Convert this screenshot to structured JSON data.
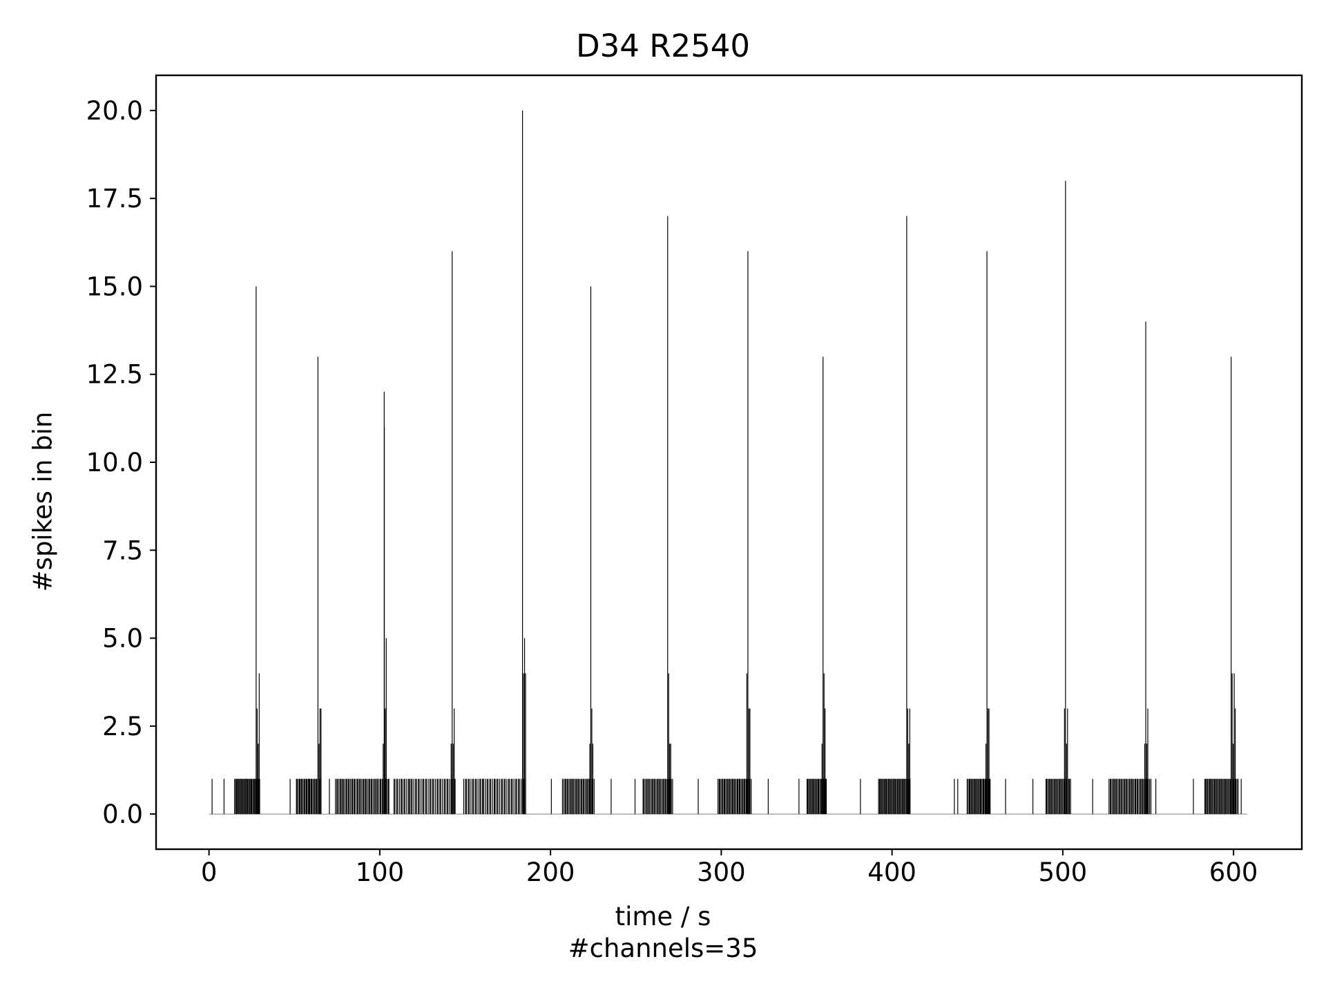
{
  "chart_data": {
    "type": "bar",
    "title": "D34 R2540",
    "xlabel": "time / s",
    "xlabel_sub": "#channels=35",
    "ylabel": "#spikes in bin",
    "xlim": [
      -31,
      640
    ],
    "ylim": [
      -1,
      21
    ],
    "xticks": [
      0,
      100,
      200,
      300,
      400,
      500,
      600
    ],
    "yticks": [
      "0.0",
      "2.5",
      "5.0",
      "7.5",
      "10.0",
      "12.5",
      "15.0",
      "17.5",
      "20.0"
    ],
    "ytick_values": [
      0,
      2.5,
      5,
      7.5,
      10,
      12.5,
      15,
      17.5,
      20
    ],
    "grid": false,
    "bar_color": "#000000",
    "baseline_end": 608,
    "burst_peaks": [
      {
        "x": 27.6,
        "value": 15
      },
      {
        "x": 63.8,
        "value": 13
      },
      {
        "x": 102.6,
        "value": 12
      },
      {
        "x": 142.4,
        "value": 16
      },
      {
        "x": 183.6,
        "value": 20
      },
      {
        "x": 223.6,
        "value": 15
      },
      {
        "x": 268.6,
        "value": 17
      },
      {
        "x": 315.6,
        "value": 16
      },
      {
        "x": 359.6,
        "value": 13
      },
      {
        "x": 408.6,
        "value": 17
      },
      {
        "x": 455.6,
        "value": 16
      },
      {
        "x": 501.6,
        "value": 18
      },
      {
        "x": 548.6,
        "value": 14
      },
      {
        "x": 598.6,
        "value": 13
      }
    ],
    "burst_secondary": [
      {
        "x": 28.2,
        "value": 3
      },
      {
        "x": 28.8,
        "value": 2
      },
      {
        "x": 29.4,
        "value": 4
      },
      {
        "x": 64.4,
        "value": 2
      },
      {
        "x": 65.0,
        "value": 3
      },
      {
        "x": 65.6,
        "value": 3
      },
      {
        "x": 102.7,
        "value": 11
      },
      {
        "x": 103.2,
        "value": 3
      },
      {
        "x": 103.8,
        "value": 5
      },
      {
        "x": 102.0,
        "value": 2
      },
      {
        "x": 143.0,
        "value": 2
      },
      {
        "x": 143.6,
        "value": 3
      },
      {
        "x": 141.8,
        "value": 2
      },
      {
        "x": 184.2,
        "value": 4
      },
      {
        "x": 184.8,
        "value": 5
      },
      {
        "x": 185.4,
        "value": 4
      },
      {
        "x": 224.2,
        "value": 3
      },
      {
        "x": 224.8,
        "value": 2
      },
      {
        "x": 223.0,
        "value": 2
      },
      {
        "x": 269.2,
        "value": 4
      },
      {
        "x": 269.8,
        "value": 2
      },
      {
        "x": 270.4,
        "value": 2
      },
      {
        "x": 316.2,
        "value": 3
      },
      {
        "x": 316.8,
        "value": 3
      },
      {
        "x": 315.0,
        "value": 4
      },
      {
        "x": 360.2,
        "value": 4
      },
      {
        "x": 360.8,
        "value": 3
      },
      {
        "x": 359.0,
        "value": 2
      },
      {
        "x": 409.2,
        "value": 3
      },
      {
        "x": 409.8,
        "value": 2
      },
      {
        "x": 410.4,
        "value": 3
      },
      {
        "x": 456.2,
        "value": 3
      },
      {
        "x": 456.8,
        "value": 3
      },
      {
        "x": 455.0,
        "value": 2
      },
      {
        "x": 502.2,
        "value": 2
      },
      {
        "x": 502.8,
        "value": 3
      },
      {
        "x": 501.0,
        "value": 3
      },
      {
        "x": 549.2,
        "value": 2
      },
      {
        "x": 549.8,
        "value": 3
      },
      {
        "x": 548.0,
        "value": 2
      },
      {
        "x": 599.2,
        "value": 4
      },
      {
        "x": 599.8,
        "value": 2
      },
      {
        "x": 600.4,
        "value": 4
      },
      {
        "x": 601.0,
        "value": 3
      }
    ],
    "one_spike_regions": [
      {
        "start": 15,
        "end": 30,
        "count": 30
      },
      {
        "start": 51,
        "end": 66,
        "count": 26
      },
      {
        "start": 74,
        "end": 106,
        "count": 48
      },
      {
        "start": 108,
        "end": 145,
        "count": 44
      },
      {
        "start": 149,
        "end": 186,
        "count": 44
      },
      {
        "start": 207,
        "end": 226,
        "count": 30
      },
      {
        "start": 254,
        "end": 272,
        "count": 28
      },
      {
        "start": 298,
        "end": 318,
        "count": 34
      },
      {
        "start": 350,
        "end": 362,
        "count": 22
      },
      {
        "start": 392,
        "end": 411,
        "count": 36
      },
      {
        "start": 444,
        "end": 458,
        "count": 26
      },
      {
        "start": 490,
        "end": 505,
        "count": 26
      },
      {
        "start": 527,
        "end": 552,
        "count": 40
      },
      {
        "start": 583,
        "end": 603,
        "count": 36
      }
    ],
    "isolated_one_spike_bins": [
      1.8,
      8.8,
      21.5,
      47.5,
      58.5,
      70.5,
      112.5,
      117.5,
      160.5,
      167.5,
      200.5,
      235.5,
      249.5,
      286.5,
      327.5,
      345.5,
      381.5,
      436.5,
      438.5,
      466.5,
      482.5,
      517.5,
      554.5,
      576.5,
      604.5
    ]
  }
}
